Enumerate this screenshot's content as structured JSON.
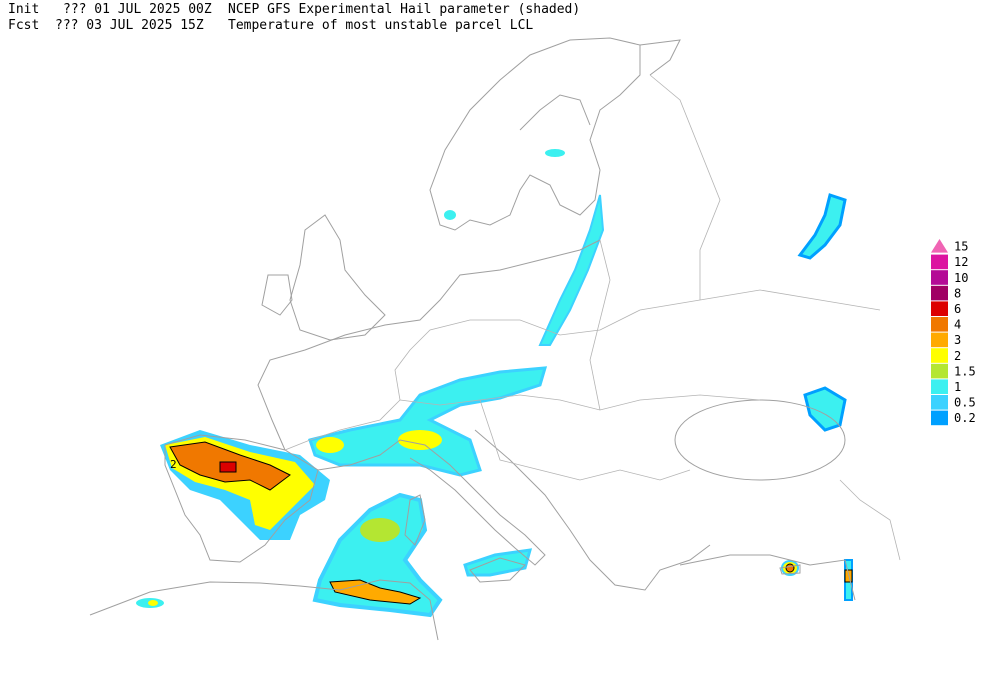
{
  "header": {
    "init_label": "Init",
    "init_time": "??? 01 JUL 2025 00Z",
    "title": "NCEP GFS Experimental Hail parameter (shaded)",
    "fcst_label": "Fcst",
    "fcst_time": "??? 03 JUL 2025 15Z",
    "subtitle": "Temperature of most unstable parcel LCL"
  },
  "legend": [
    {
      "label": "15",
      "color": "#f064b4"
    },
    {
      "label": "12",
      "color": "#dc14a0"
    },
    {
      "label": "10",
      "color": "#b40a96"
    },
    {
      "label": "8",
      "color": "#a00064"
    },
    {
      "label": "6",
      "color": "#dc0000"
    },
    {
      "label": "4",
      "color": "#f07800"
    },
    {
      "label": "3",
      "color": "#ffaa00"
    },
    {
      "label": "2",
      "color": "#ffff00"
    },
    {
      "label": "1.5",
      "color": "#b4e632"
    },
    {
      "label": "1",
      "color": "#3cf0f0"
    },
    {
      "label": "0.5",
      "color": "#3cd2ff"
    },
    {
      "label": "0.2",
      "color": "#00a0ff"
    }
  ],
  "map": {
    "contour_labels": [
      "2"
    ]
  }
}
